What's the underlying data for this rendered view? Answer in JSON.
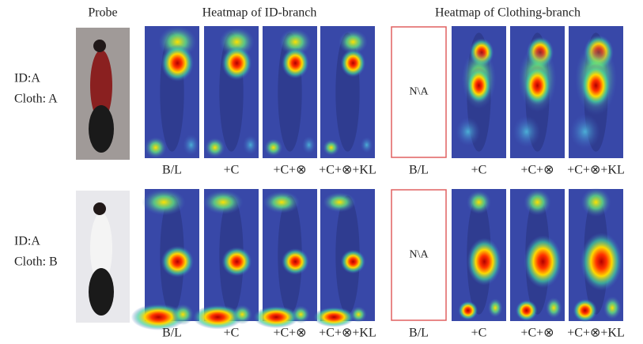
{
  "header": {
    "probe": "Probe",
    "id_branch": "Heatmap of ID-branch",
    "clothing_branch": "Heatmap of Clothing-branch"
  },
  "rows": [
    {
      "id": "ID:A",
      "cloth": "Cloth: A",
      "na": "N\\A",
      "id_labels": [
        "B/L",
        "+C",
        "+C+⊗",
        "+C+⊗+KL"
      ],
      "clothing_labels": [
        "B/L",
        "+C",
        "+C+⊗",
        "+C+⊗+KL"
      ]
    },
    {
      "id": "ID:A",
      "cloth": "Cloth: B",
      "na": "N\\A",
      "id_labels": [
        "B/L",
        "+C",
        "+C+⊗",
        "+C+⊗+KL"
      ],
      "clothing_labels": [
        "B/L",
        "+C",
        "+C+⊗",
        "+C+⊗+KL"
      ]
    }
  ]
}
